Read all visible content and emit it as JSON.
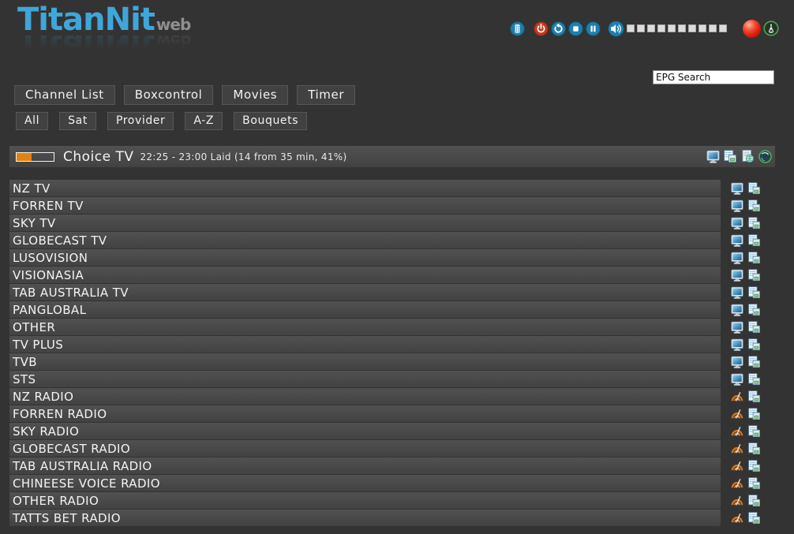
{
  "logo": {
    "title": "TitanNit",
    "subtitle": "web"
  },
  "topbar": {
    "icons": [
      "remote-control",
      "power",
      "refresh",
      "stop",
      "pause",
      "volume-speaker"
    ],
    "volume": {
      "segments": 10,
      "filled": 0
    },
    "status_icons": [
      "record-ball",
      "signal-antenna"
    ]
  },
  "search": {
    "value": "EPG Search"
  },
  "nav": {
    "items": [
      {
        "label": "Channel List"
      },
      {
        "label": "Boxcontrol"
      },
      {
        "label": "Movies"
      },
      {
        "label": "Timer"
      }
    ]
  },
  "filters": {
    "items": [
      {
        "label": "All"
      },
      {
        "label": "Sat"
      },
      {
        "label": "Provider"
      },
      {
        "label": "A-Z"
      },
      {
        "label": "Bouquets"
      }
    ]
  },
  "now_playing": {
    "channel": "Choice TV",
    "epg_info": "22:25 - 23:00 Laid (14 from 35 min, 41%)",
    "progress_percent": 41,
    "action_icons": [
      "tv-monitor",
      "epg-pages",
      "web-epg-document",
      "globe"
    ]
  },
  "channel_list": {
    "row_icons": [
      "channel-type",
      "epg-pages"
    ],
    "channels": [
      {
        "name": "NZ TV",
        "type": "tv"
      },
      {
        "name": "FORREN TV",
        "type": "tv"
      },
      {
        "name": "SKY TV",
        "type": "tv"
      },
      {
        "name": "GLOBECAST TV",
        "type": "tv"
      },
      {
        "name": "LUSOVISION",
        "type": "tv"
      },
      {
        "name": "VISIONASIA",
        "type": "tv"
      },
      {
        "name": "TAB AUSTRALIA TV",
        "type": "tv"
      },
      {
        "name": "PANGLOBAL",
        "type": "tv"
      },
      {
        "name": "OTHER",
        "type": "tv"
      },
      {
        "name": "TV PLUS",
        "type": "tv"
      },
      {
        "name": "TVB",
        "type": "tv"
      },
      {
        "name": "STS",
        "type": "tv"
      },
      {
        "name": "NZ RADIO",
        "type": "radio"
      },
      {
        "name": "FORREN RADIO",
        "type": "radio"
      },
      {
        "name": "SKY RADIO",
        "type": "radio"
      },
      {
        "name": "GLOBECAST RADIO",
        "type": "radio"
      },
      {
        "name": "TAB AUSTRALIA RADIO",
        "type": "radio"
      },
      {
        "name": "CHINEESE VOICE RADIO",
        "type": "radio"
      },
      {
        "name": "OTHER RADIO",
        "type": "radio"
      },
      {
        "name": "TATTS BET RADIO",
        "type": "radio"
      }
    ]
  },
  "colors": {
    "background": "#333333",
    "row_top": "#515151",
    "row_bottom": "#424242",
    "button": "#414141",
    "accent_blue": "#3fa6da",
    "progress_orange": "#e2820e",
    "icon_circle_blue": "#1f7fad",
    "icon_circle_red": "#c03a20",
    "status_green": "#4aa84a",
    "record_red": "#e01d10"
  }
}
